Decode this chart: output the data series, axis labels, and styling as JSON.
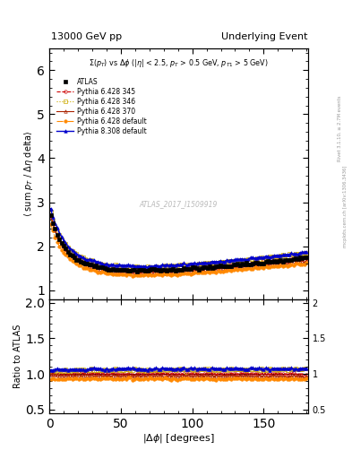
{
  "title_left": "13000 GeV pp",
  "title_right": "Underlying Event",
  "subtitle": "#Sigma(p_{T}) vs #Delta#phi (|#eta| < 2.5, p_{T} > 0.5 GeV, p_{T1} > 5 GeV)",
  "xlabel": "|#Delta #phi| [degrees]",
  "ylabel_main": "#langle sum p_{T} / #Delta#eta delta#rangle",
  "ylabel_ratio": "Ratio to ATLAS",
  "watermark": "ATLAS_2017_I1509919",
  "right_label": "Rivet 3.1.10, ≥ 2.7M events",
  "right_label2": "mcplots.cern.ch [arXiv:1306.3436]",
  "xlim": [
    0,
    181
  ],
  "ylim_main": [
    0.8,
    6.5
  ],
  "ylim_ratio": [
    0.45,
    2.05
  ],
  "yticks_main": [
    1,
    2,
    3,
    4,
    5,
    6
  ],
  "yticks_ratio": [
    0.5,
    1.0,
    1.5,
    2.0
  ],
  "series": [
    {
      "label": "ATLAS",
      "color": "#000000",
      "marker": "s",
      "markersize": 3.0,
      "linestyle": "none",
      "linewidth": 0,
      "filled": true,
      "zorder": 10
    },
    {
      "label": "Pythia 6.428 345",
      "color": "#cc0000",
      "marker": "o",
      "markersize": 2.5,
      "linestyle": "--",
      "linewidth": 0.8,
      "filled": false,
      "zorder": 5
    },
    {
      "label": "Pythia 6.428 346",
      "color": "#ccaa00",
      "marker": "s",
      "markersize": 2.5,
      "linestyle": ":",
      "linewidth": 0.8,
      "filled": false,
      "zorder": 5
    },
    {
      "label": "Pythia 6.428 370",
      "color": "#aa2200",
      "marker": "^",
      "markersize": 2.5,
      "linestyle": "-",
      "linewidth": 0.8,
      "filled": false,
      "zorder": 5
    },
    {
      "label": "Pythia 6.428 default",
      "color": "#ff8800",
      "marker": "o",
      "markersize": 2.5,
      "linestyle": "-.",
      "linewidth": 0.8,
      "filled": true,
      "zorder": 5
    },
    {
      "label": "Pythia 8.308 default",
      "color": "#0000cc",
      "marker": "^",
      "markersize": 2.5,
      "linestyle": "-",
      "linewidth": 1.0,
      "filled": true,
      "zorder": 6
    }
  ]
}
